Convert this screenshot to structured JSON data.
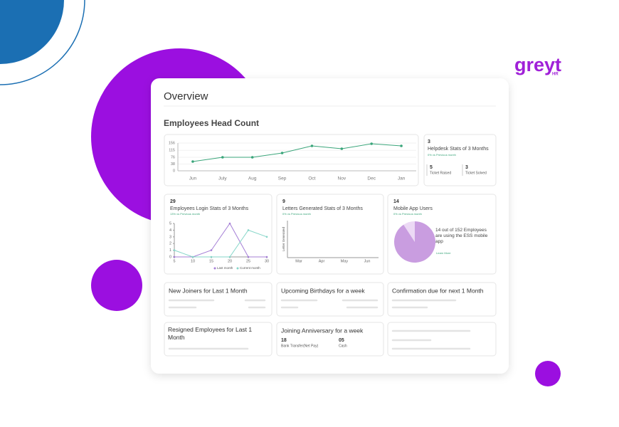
{
  "brand": {
    "name": "greyt",
    "sub": "HR"
  },
  "overview": {
    "title": "Overview"
  },
  "head_count": {
    "title": "Employees Head Count",
    "chart": {
      "type": "line",
      "categories": [
        "Jun",
        "July",
        "Aug",
        "Sep",
        "Oct",
        "Nov",
        "Dec",
        "Jan"
      ],
      "values": [
        52,
        76,
        76,
        100,
        140,
        124,
        152,
        140
      ],
      "color": "#3aa57a",
      "ylim": [
        0,
        156
      ],
      "yticks": [
        0,
        38,
        76,
        115,
        156
      ]
    }
  },
  "helpdesk": {
    "count": "3",
    "title": "Helpdesk Stats of 3 Months",
    "change": "0% vs Previous month",
    "raised": "5",
    "raised_label": "Ticket Raised",
    "solved": "3",
    "solved_label": "Ticket Solved"
  },
  "login": {
    "count": "29",
    "title": "Employees Login Stats of 3 Months",
    "change": "13% vs Previous month",
    "chart": {
      "type": "line",
      "x": [
        5,
        10,
        15,
        20,
        25,
        30
      ],
      "xlim": [
        5,
        30
      ],
      "xticks": [
        5,
        10,
        15,
        20,
        25,
        30
      ],
      "ylim": [
        0,
        5
      ],
      "yticks": [
        0,
        1,
        2,
        3,
        4,
        5
      ],
      "series": [
        {
          "name": "Last month",
          "color": "#a57fd6",
          "values": [
            0,
            0,
            1,
            5,
            0,
            0
          ]
        },
        {
          "name": "Current month",
          "color": "#86d6c9",
          "values": [
            1,
            0,
            0,
            0,
            4,
            3
          ]
        }
      ]
    }
  },
  "letters": {
    "count": "9",
    "title": "Letters Generated Stats of 3 Months",
    "change": "0% vs Previous month",
    "chart": {
      "type": "bar",
      "categories": [
        "Mar",
        "Apr",
        "May",
        "Jun"
      ],
      "y_label": "Letter Generated"
    }
  },
  "mobile": {
    "count": 14,
    "total": 152,
    "title": "Mobile App Users",
    "change": "0% vs Previous month",
    "note": "14 out of 152 Employees are using the ESS mobile app",
    "link": "Learn More"
  },
  "cards": [
    {
      "title": "New Joiners for Last 1 Month"
    },
    {
      "title": "Upcoming Birthdays for a week"
    },
    {
      "title": "Confirmation due for next 1 Month"
    },
    {
      "title": "Resigned Employees for Last 1 Month"
    },
    {
      "title": "Joining Anniversary for a week",
      "items": [
        {
          "value": "18",
          "label": "Bank Transfer(Net Pay)"
        },
        {
          "value": "05",
          "label": "Cash"
        }
      ]
    }
  ]
}
